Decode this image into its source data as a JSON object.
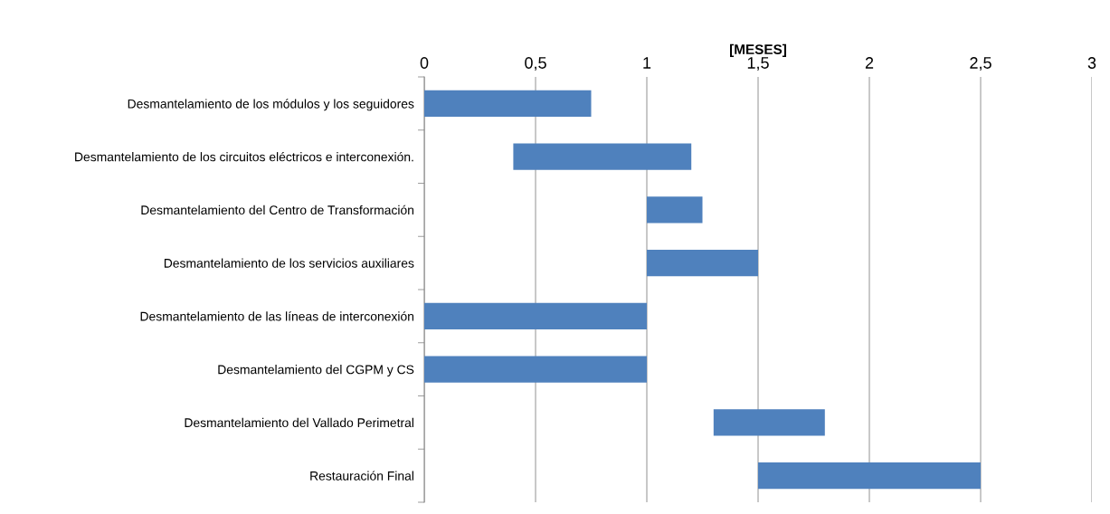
{
  "chart_data": {
    "type": "bar",
    "orientation": "horizontal",
    "xlabel": "[MESES]",
    "categories": [
      "Desmantelamiento de los módulos y los seguidores",
      "Desmantelamiento de los circuitos eléctricos e interconexión.",
      "Desmantelamiento del Centro de Transformación",
      "Desmantelamiento de los servicios auxiliares",
      "Desmantelamiento de las líneas de interconexión",
      "Desmantelamiento del CGPM y CS",
      "Desmantelamiento del Vallado Perimetral",
      "Restauración Final"
    ],
    "base": [
      0,
      0.4,
      1,
      1,
      0,
      0,
      1.3,
      1.5
    ],
    "values": [
      0.75,
      0.8,
      0.25,
      0.5,
      1,
      1,
      0.5,
      1
    ],
    "color": "#4f81bd",
    "xlim": [
      0,
      3
    ],
    "xticks": [
      0,
      {
        "value": 0.5,
        "label": "0,5"
      },
      1,
      {
        "value": 1.5,
        "label": "1,5"
      },
      2,
      {
        "value": 2.5,
        "label": "2,5"
      },
      3
    ],
    "grid": "x"
  }
}
